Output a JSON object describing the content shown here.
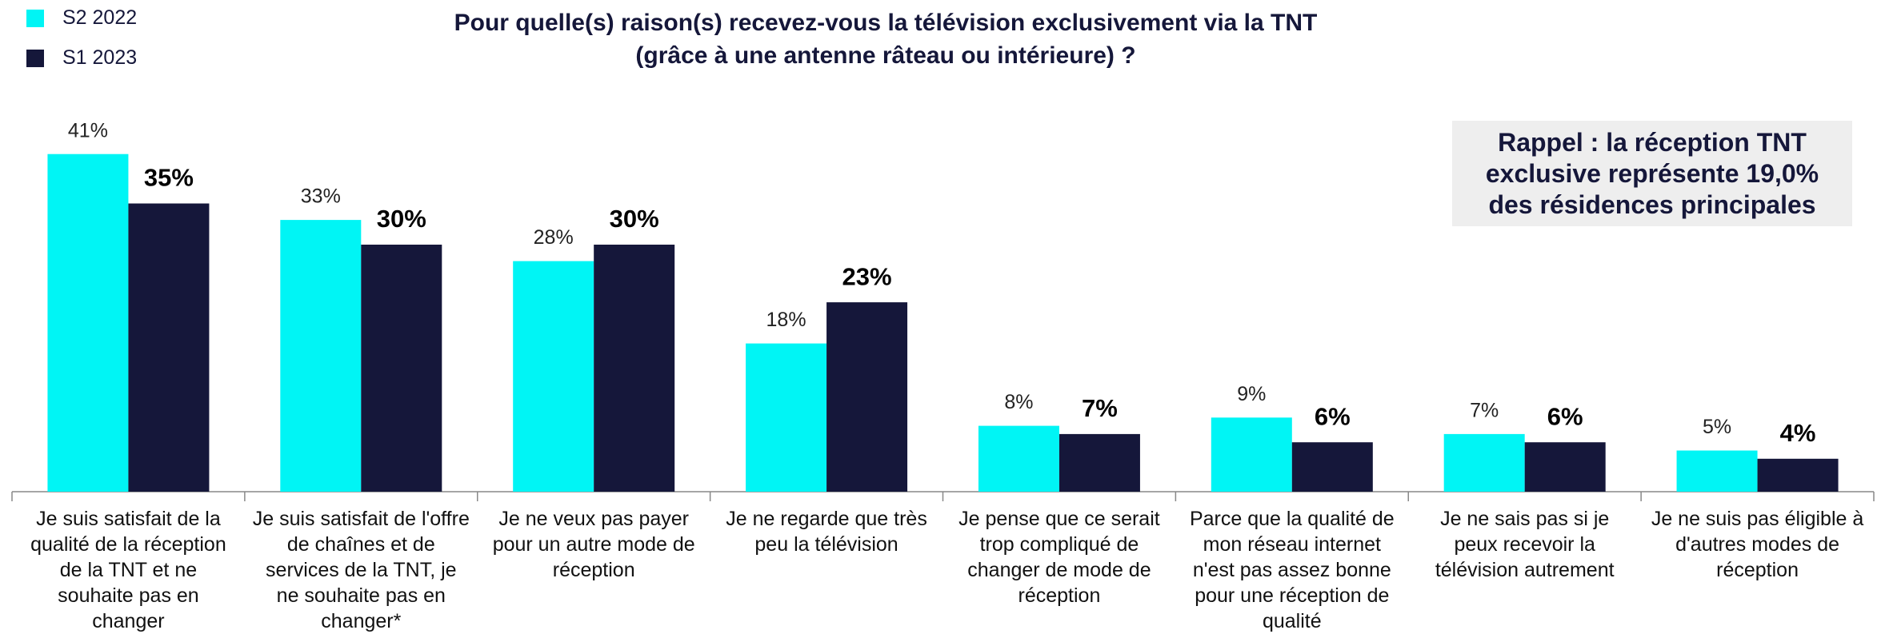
{
  "chart_data": {
    "type": "bar",
    "title": "Pour quelle(s) raison(s) recevez-vous la télévision exclusivement via la TNT (grâce à une antenne râteau ou intérieure) ?",
    "annotation": "Rappel : la réception TNT exclusive représente 19,0% des résidences principales",
    "categories": [
      "Je suis satisfait de la qualité de la réception de la TNT et ne souhaite pas en changer",
      "Je suis satisfait de l'offre de chaînes et de services de la TNT, je ne souhaite pas en changer*",
      "Je ne veux pas payer pour un autre mode de réception",
      "Je ne regarde que très peu la télévision",
      "Je pense que ce serait trop compliqué de changer de mode de réception",
      "Parce que la qualité de mon réseau internet n'est pas assez bonne pour une réception de qualité",
      "Je ne sais pas si je peux recevoir la télévision autrement",
      "Je ne suis pas éligible à d'autres modes de réception"
    ],
    "series": [
      {
        "name": "S2 2022",
        "color": "#00f5f5",
        "values": [
          41,
          33,
          28,
          18,
          8,
          9,
          7,
          5
        ],
        "value_labels": [
          "41%",
          "33%",
          "28%",
          "18%",
          "8%",
          "9%",
          "7%",
          "5%"
        ]
      },
      {
        "name": "S1 2023",
        "color": "#15173a",
        "values": [
          35,
          30,
          30,
          23,
          7,
          6,
          6,
          4
        ],
        "value_labels": [
          "35%",
          "30%",
          "30%",
          "23%",
          "7%",
          "6%",
          "6%",
          "4%"
        ]
      }
    ],
    "legend": "top-left"
  }
}
